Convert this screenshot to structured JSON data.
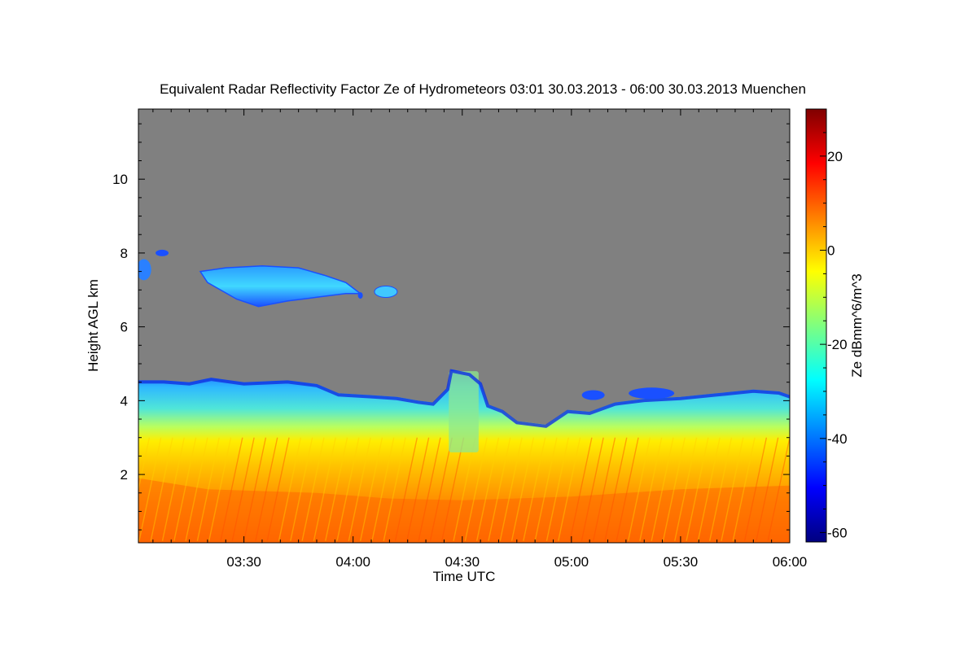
{
  "chart_data": {
    "type": "heatmap",
    "title": "Equivalent Radar Reflectivity Factor Ze of Hydrometeors   03:01 30.03.2013 - 06:00 30.03.2013 Muenchen",
    "xlabel": "Time UTC",
    "ylabel": "Height AGL km",
    "x_ticks": [
      "03:30",
      "04:00",
      "04:30",
      "05:00",
      "05:30",
      "06:00"
    ],
    "x_tick_minutes": [
      210,
      240,
      270,
      300,
      330,
      360
    ],
    "xlim_minutes": [
      181,
      360
    ],
    "y_ticks": [
      2,
      4,
      6,
      8,
      10
    ],
    "ylim": [
      0.15,
      11.9
    ],
    "background_color": "#808080",
    "colorbar": {
      "label": "Ze dBmm^6/m^3",
      "ticks": [
        20,
        0,
        -20,
        -40,
        -60
      ],
      "range": [
        -62,
        30
      ],
      "colormap": "jet"
    },
    "layers": [
      {
        "name": "low-level cloud/precip top",
        "time_range": [
          "03:01",
          "06:00"
        ],
        "top_km_approx": [
          4.5,
          4.6,
          4.3,
          4.2,
          4.8,
          3.4,
          3.7,
          4.3,
          4.2
        ],
        "ze_range": [
          -50,
          15
        ]
      },
      {
        "name": "upper cloud band",
        "time_range": [
          "03:20",
          "04:02"
        ],
        "height_km": [
          6.6,
          7.6
        ],
        "ze_range": [
          -40,
          -25
        ]
      },
      {
        "name": "cirrus fragments",
        "time_range": [
          "03:01",
          "03:10"
        ],
        "height_km": [
          7.3,
          8.1
        ],
        "ze_range": [
          -45,
          -30
        ]
      }
    ]
  }
}
